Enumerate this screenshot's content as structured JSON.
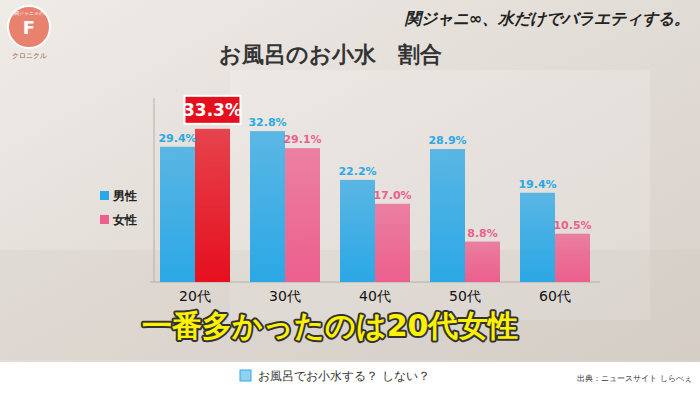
{
  "chart_data": {
    "type": "bar",
    "title": "お風呂のお小水　割合",
    "categories": [
      "20代",
      "30代",
      "40代",
      "50代",
      "60代"
    ],
    "series": [
      {
        "name": "男性",
        "color": "#2ba8e6",
        "values": [
          29.4,
          32.8,
          22.2,
          28.9,
          19.4
        ],
        "value_labels": [
          "29.4%",
          "32.8%",
          "22.2%",
          "28.9%",
          "19.4%"
        ]
      },
      {
        "name": "女性",
        "color": "#ec5f8e",
        "colors": [
          "#e60f1e",
          "#ec5f8e",
          "#ec5f8e",
          "#ec5f8e",
          "#ec5f8e"
        ],
        "values": [
          33.3,
          29.1,
          17.0,
          8.8,
          10.5
        ],
        "value_labels": [
          "33.3%",
          "29.1%",
          "17.0%",
          "8.8%",
          "10.5%"
        ]
      }
    ],
    "ylim": [
      0,
      40
    ],
    "data_labels": true,
    "tick_labels": "x",
    "grid": false,
    "legend": "left",
    "annotations": [
      "関ジャニ∞、水だけでバラエティする。",
      "一番多かったのは20代女性",
      "お風呂でお小水する？ しない？",
      "出典：ニュースサイト しらべぇ",
      "関ジャニ∞の",
      "F",
      "クロニクル"
    ]
  }
}
